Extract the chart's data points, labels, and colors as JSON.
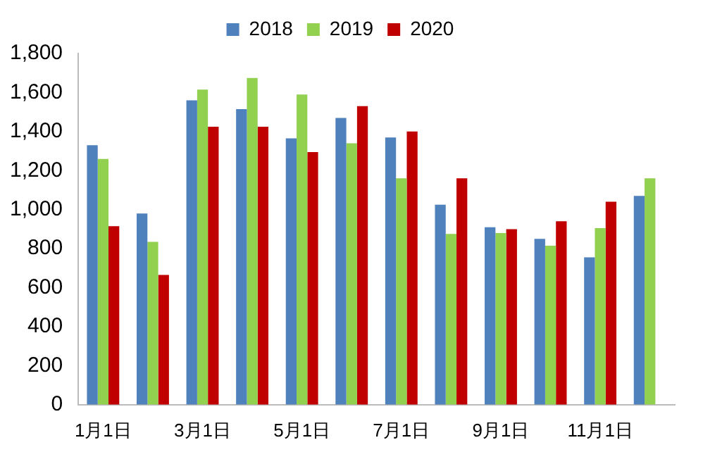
{
  "chart_data": {
    "type": "bar",
    "categories": [
      "1月1日",
      null,
      "3月1日",
      null,
      "5月1日",
      null,
      "7月1日",
      null,
      "9月1日",
      null,
      "11月1日",
      null
    ],
    "series": [
      {
        "name": "2018",
        "color": "#4f81bd",
        "values": [
          1330,
          980,
          1560,
          1515,
          1365,
          1470,
          1370,
          1025,
          910,
          850,
          755,
          1070
        ]
      },
      {
        "name": "2019",
        "color": "#92d050",
        "values": [
          1260,
          835,
          1615,
          1675,
          1590,
          1340,
          1160,
          875,
          880,
          815,
          905,
          1160
        ]
      },
      {
        "name": "2020",
        "color": "#c00000",
        "values": [
          915,
          665,
          1425,
          1425,
          1295,
          1530,
          1400,
          1160,
          900,
          940,
          1040,
          null
        ]
      }
    ],
    "ylim": [
      0,
      1800
    ],
    "yticks": [
      0,
      200,
      400,
      600,
      800,
      {
        "value": 1000,
        "label": "1,000"
      },
      {
        "value": 1200,
        "label": "1,200"
      },
      {
        "value": 1400,
        "label": "1,400"
      },
      {
        "value": 1600,
        "label": "1,600"
      },
      {
        "value": 1800,
        "label": "1,800"
      }
    ],
    "grid": false,
    "legend": "top"
  }
}
